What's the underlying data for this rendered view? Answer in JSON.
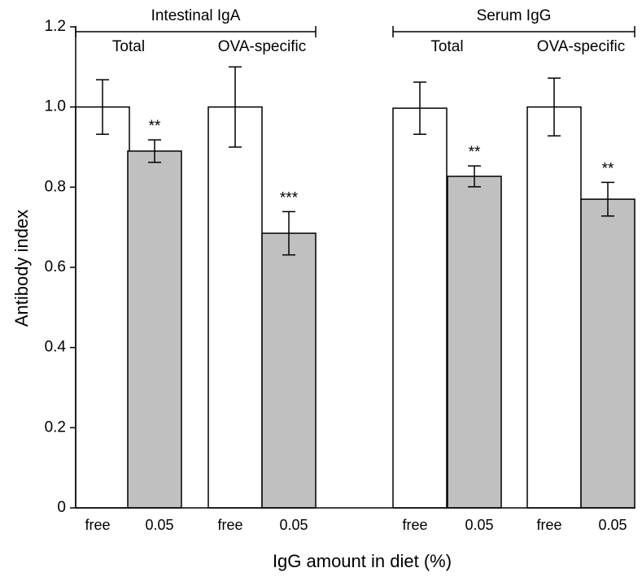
{
  "chart_data": {
    "type": "bar",
    "x_label": "IgG amount in diet (%)",
    "y_label": "Antibody index",
    "groups": [
      "Intestinal IgA",
      "Serum IgG"
    ],
    "subgroups": [
      "Total",
      "OVA-specific",
      "Total",
      "OVA-specific"
    ],
    "categories": [
      "free",
      "0.05",
      "free",
      "0.05",
      "free",
      "0.05",
      "free",
      "0.05"
    ],
    "values": [
      1.0,
      0.89,
      1.0,
      0.685,
      0.997,
      0.827,
      1.0,
      0.77
    ],
    "errors": [
      0.068,
      0.028,
      0.1,
      0.054,
      0.065,
      0.026,
      0.072,
      0.042
    ],
    "significance": [
      null,
      "**",
      null,
      "***",
      null,
      "**",
      null,
      "**"
    ],
    "colors": [
      "#ffffff",
      "#c0c0c0",
      "#ffffff",
      "#c0c0c0",
      "#ffffff",
      "#c0c0c0",
      "#ffffff",
      "#c0c0c0"
    ],
    "ylim": [
      0,
      1.2
    ],
    "yticks": [
      0,
      0.2,
      0.4,
      0.6,
      0.8,
      {
        "value": 1,
        "label": "1.0"
      },
      1.2
    ]
  }
}
